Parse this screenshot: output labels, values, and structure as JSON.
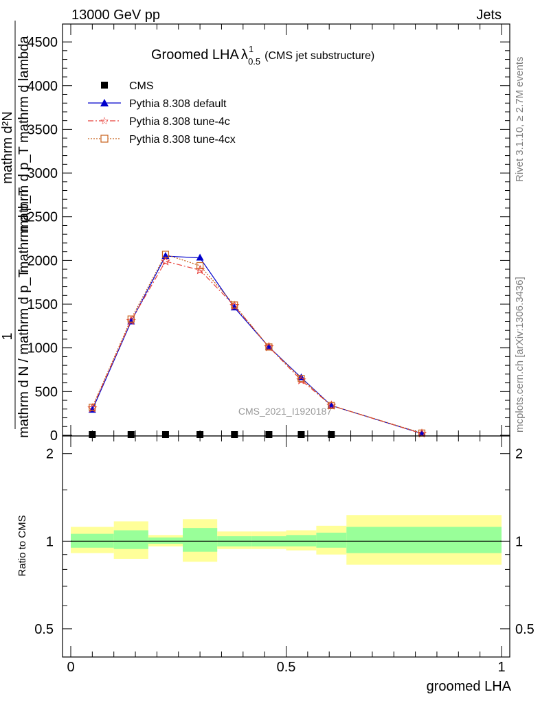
{
  "header": {
    "beam_label": "13000 GeV pp",
    "process_label": "Jets"
  },
  "side_labels": {
    "rivet": "Rivet 3.1.10, ≥ 2.7M events",
    "mcplots": "mcplots.cern.ch [arXiv:1306.3436]"
  },
  "watermark": "CMS_2021_I1920187",
  "colors": {
    "cms": "#000000",
    "default": "#0000cc",
    "tune4c": "#e8403a",
    "tune4cx": "#c8601a",
    "band_inner": "#99ff99",
    "band_outer": "#ffff99"
  },
  "chart_data": [
    {
      "type": "line",
      "title": "Groomed LHA",
      "title_symbol": "λ",
      "title_sup": "1",
      "title_sub": "0.5",
      "title_note": "(CMS jet substructure)",
      "ylabel_top": "mathrm d²N",
      "ylabel_mid1": "mathrm d p_T mathrm d lambda",
      "ylabel_mid2": "mathrm d p_T",
      "ylabel_one": "1",
      "ylabel_bottom": "mathrm d N / mathrm d p_T",
      "ylim": [
        0,
        4650
      ],
      "yticks": [
        0,
        500,
        1000,
        1500,
        2000,
        2500,
        3000,
        3500,
        4000,
        4500
      ],
      "ytick_labels": [
        "0",
        "500",
        "1000",
        "1500",
        "2000",
        "2500",
        "3000",
        "3500",
        "4000",
        "4500"
      ],
      "xlim": [
        0,
        1
      ],
      "legend_position": "top-left",
      "series": [
        {
          "name": "CMS",
          "key": "cms",
          "marker": "square",
          "x": [
            0.05,
            0.14,
            0.22,
            0.3,
            0.38,
            0.46,
            0.535,
            0.605
          ],
          "y": [
            0,
            0,
            0,
            0,
            0,
            0,
            0,
            0
          ]
        },
        {
          "name": "Pythia 8.308 default",
          "key": "default",
          "marker": "triangle",
          "x": [
            0.05,
            0.14,
            0.22,
            0.3,
            0.38,
            0.46,
            0.535,
            0.605,
            0.815
          ],
          "y": [
            290,
            1300,
            2050,
            2030,
            1460,
            1010,
            660,
            340,
            20
          ]
        },
        {
          "name": "Pythia 8.308 tune-4c",
          "key": "tune4c",
          "marker": "star",
          "x": [
            0.05,
            0.14,
            0.22,
            0.3,
            0.38,
            0.46,
            0.535,
            0.605,
            0.815
          ],
          "y": [
            310,
            1310,
            1990,
            1890,
            1480,
            1010,
            630,
            340,
            20
          ]
        },
        {
          "name": "Pythia 8.308 tune-4cx",
          "key": "tune4cx",
          "marker": "open-square",
          "x": [
            0.05,
            0.14,
            0.22,
            0.3,
            0.38,
            0.46,
            0.535,
            0.605,
            0.815
          ],
          "y": [
            320,
            1330,
            2070,
            1940,
            1490,
            1010,
            650,
            340,
            25
          ]
        }
      ]
    },
    {
      "type": "area",
      "ylabel": "Ratio to CMS",
      "xlabel": "groomed LHA",
      "xlim": [
        0,
        1
      ],
      "ylim": [
        0.4,
        2.3
      ],
      "yscale": "log",
      "yticks": [
        0.5,
        1,
        2
      ],
      "ytick_labels": [
        "0.5",
        "1",
        "2"
      ],
      "xticks": [
        0,
        0.5,
        1
      ],
      "xtick_labels": [
        "0",
        "0.5",
        "1"
      ],
      "reference_line": 1,
      "bins": [
        {
          "x0": 0.0,
          "x1": 0.1,
          "inner": [
            0.95,
            1.06
          ],
          "outer": [
            0.91,
            1.12
          ]
        },
        {
          "x0": 0.1,
          "x1": 0.18,
          "inner": [
            0.94,
            1.09
          ],
          "outer": [
            0.87,
            1.17
          ]
        },
        {
          "x0": 0.18,
          "x1": 0.26,
          "inner": [
            0.98,
            1.03
          ],
          "outer": [
            0.96,
            1.05
          ]
        },
        {
          "x0": 0.26,
          "x1": 0.34,
          "inner": [
            0.92,
            1.11
          ],
          "outer": [
            0.85,
            1.19
          ]
        },
        {
          "x0": 0.34,
          "x1": 0.42,
          "inner": [
            0.96,
            1.04
          ],
          "outer": [
            0.94,
            1.08
          ]
        },
        {
          "x0": 0.42,
          "x1": 0.5,
          "inner": [
            0.96,
            1.04
          ],
          "outer": [
            0.94,
            1.08
          ]
        },
        {
          "x0": 0.5,
          "x1": 0.57,
          "inner": [
            0.96,
            1.05
          ],
          "outer": [
            0.93,
            1.09
          ]
        },
        {
          "x0": 0.57,
          "x1": 0.64,
          "inner": [
            0.95,
            1.07
          ],
          "outer": [
            0.9,
            1.13
          ]
        },
        {
          "x0": 0.64,
          "x1": 1.0,
          "inner": [
            0.91,
            1.12
          ],
          "outer": [
            0.83,
            1.23
          ]
        }
      ]
    }
  ]
}
